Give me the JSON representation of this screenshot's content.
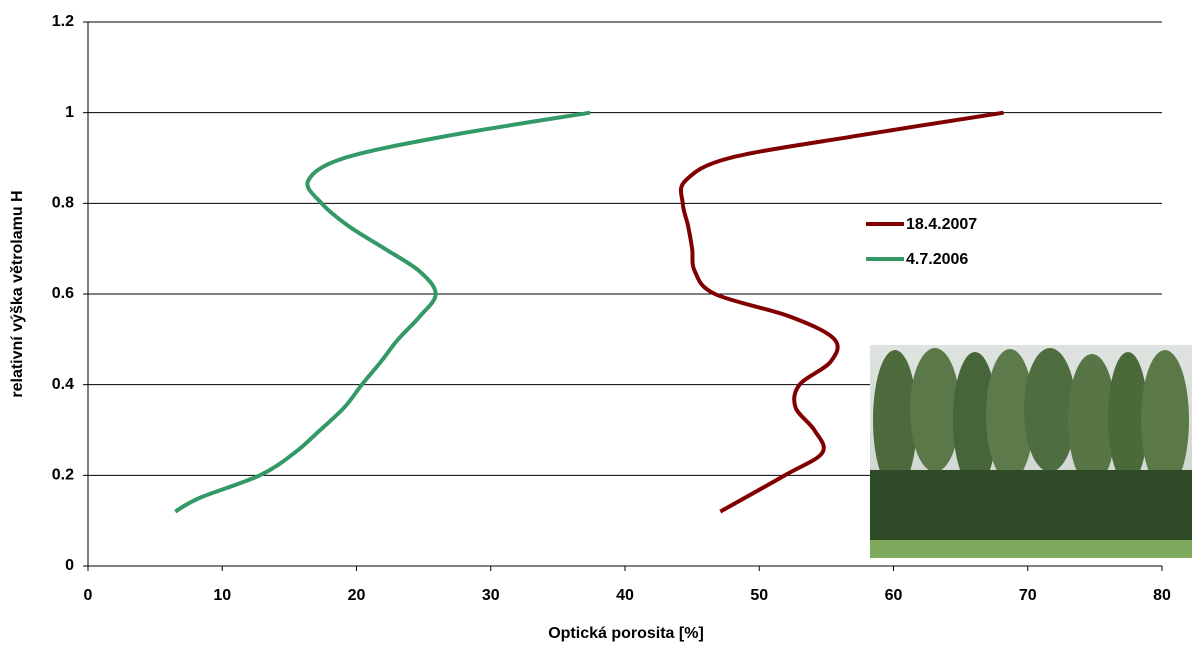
{
  "chart_data": {
    "type": "line",
    "xlabel": "Optická porosita [%]",
    "ylabel": "relativní výška větrolamu H",
    "xlim": [
      0,
      80
    ],
    "xticks": [
      0,
      10,
      20,
      30,
      40,
      50,
      60,
      70,
      80
    ],
    "ylim": [
      0,
      1.2
    ],
    "yticks": [
      0,
      0.2,
      0.4,
      0.6,
      0.8,
      1,
      1.2
    ],
    "grid": true,
    "legend": "right",
    "series": [
      {
        "name": "18.4.2007",
        "color": "#800000",
        "x": [
          47.1,
          51.9,
          54.7,
          54.1,
          52.7,
          53.0,
          55.3,
          55.6,
          52.3,
          46.7,
          45.2,
          45.0,
          44.7,
          44.3,
          44.5,
          47.8,
          57.5,
          68.2
        ],
        "values": [
          0.12,
          0.2,
          0.25,
          0.3,
          0.35,
          0.4,
          0.45,
          0.5,
          0.55,
          0.6,
          0.65,
          0.7,
          0.75,
          0.8,
          0.85,
          0.9,
          0.95,
          1.0
        ]
      },
      {
        "name": "4.7.2006",
        "color": "#339966",
        "x": [
          6.5,
          8.3,
          12.8,
          15.4,
          17.3,
          19.1,
          20.4,
          21.8,
          23.1,
          24.7,
          25.9,
          24.7,
          22.1,
          19.4,
          17.4,
          16.4,
          19.1,
          27.0,
          37.4
        ],
        "values": [
          0.12,
          0.15,
          0.2,
          0.25,
          0.3,
          0.35,
          0.4,
          0.45,
          0.5,
          0.55,
          0.6,
          0.65,
          0.7,
          0.75,
          0.8,
          0.85,
          0.9,
          0.95,
          1.0
        ]
      }
    ]
  }
}
